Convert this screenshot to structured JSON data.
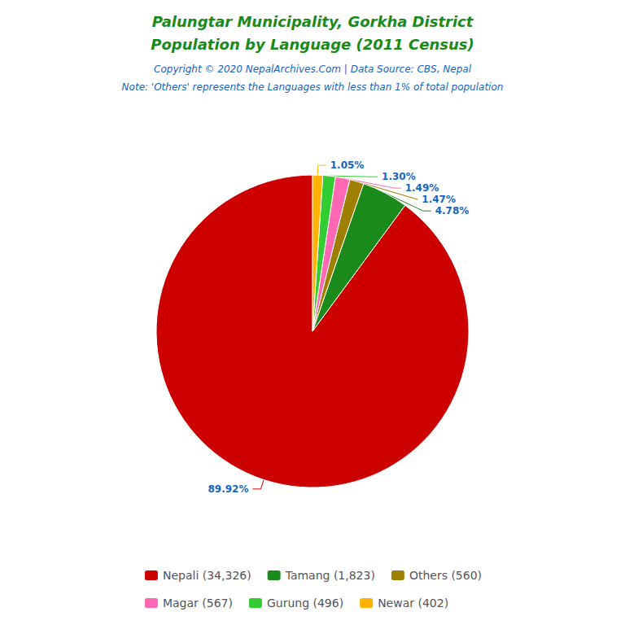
{
  "chart_data": {
    "type": "pie",
    "title": "Palungtar Municipality, Gorkha District",
    "subtitle": "Population by Language (2011 Census)",
    "annotations": [
      "Copyright © 2020 NepalArchives.Com | Data Source: CBS, Nepal",
      "Note: 'Others' represents the Languages with less than 1% of total population"
    ],
    "categories": [
      "Nepali (34,326)",
      "Tamang (1,823)",
      "Others (560)",
      "Magar (567)",
      "Gurung (496)",
      "Newar (402)"
    ],
    "values": [
      89.92,
      4.78,
      1.47,
      1.49,
      1.3,
      1.05
    ],
    "value_labels": [
      "89.92%",
      "4.78%",
      "1.47%",
      "1.49%",
      "1.30%",
      "1.05%"
    ],
    "colors": [
      "#CC0000",
      "#1a8a1a",
      "#9E8000",
      "#FF69B4",
      "#33CC33",
      "#FFB300"
    ],
    "data_labels": true,
    "legend": "bottom"
  }
}
